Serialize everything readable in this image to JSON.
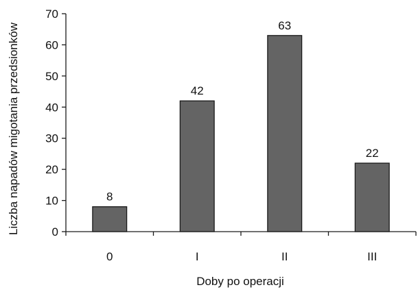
{
  "chart_data": {
    "type": "bar",
    "title": "",
    "xlabel": "Doby po operacji",
    "ylabel": "Liczba napadów migotania przedsionków",
    "categories": [
      "0",
      "I",
      "II",
      "III"
    ],
    "series": [
      {
        "values": [
          8,
          42,
          63,
          22
        ],
        "data_labels": [
          "8",
          "42",
          "63",
          "22"
        ]
      }
    ],
    "ylim": [
      0,
      70
    ],
    "yticks": [
      0,
      10,
      20,
      30,
      40,
      50,
      60,
      70
    ],
    "grid": false,
    "legend": "none",
    "colors": {
      "bar_fill": "#646464",
      "bar_stroke": "#1a1a1a",
      "axis": "#1a1a1a",
      "text": "#111111"
    }
  }
}
